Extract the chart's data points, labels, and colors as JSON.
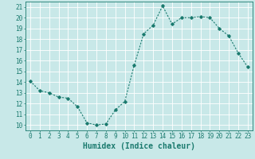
{
  "xlabel": "Humidex (Indice chaleur)",
  "ylabel": "",
  "x": [
    0,
    1,
    2,
    3,
    4,
    5,
    6,
    7,
    8,
    9,
    10,
    11,
    12,
    13,
    14,
    15,
    16,
    17,
    18,
    19,
    20,
    21,
    22,
    23
  ],
  "y": [
    14.1,
    13.2,
    13.0,
    12.6,
    12.5,
    11.7,
    10.2,
    10.0,
    10.1,
    11.4,
    12.2,
    15.6,
    18.5,
    19.3,
    21.1,
    19.4,
    20.0,
    20.0,
    20.1,
    20.0,
    19.0,
    18.3,
    16.7,
    15.4
  ],
  "line_color": "#1a7a6e",
  "marker": "D",
  "marker_size": 1.8,
  "line_width": 0.8,
  "background_color": "#c8e8e8",
  "grid_color": "#ffffff",
  "tick_color": "#1a7a6e",
  "label_color": "#1a7a6e",
  "ylim": [
    9.5,
    21.5
  ],
  "yticks": [
    10,
    11,
    12,
    13,
    14,
    15,
    16,
    17,
    18,
    19,
    20,
    21
  ],
  "xlim": [
    -0.5,
    23.5
  ],
  "xticks": [
    0,
    1,
    2,
    3,
    4,
    5,
    6,
    7,
    8,
    9,
    10,
    11,
    12,
    13,
    14,
    15,
    16,
    17,
    18,
    19,
    20,
    21,
    22,
    23
  ],
  "xlabel_fontsize": 7,
  "tick_fontsize": 5.5
}
